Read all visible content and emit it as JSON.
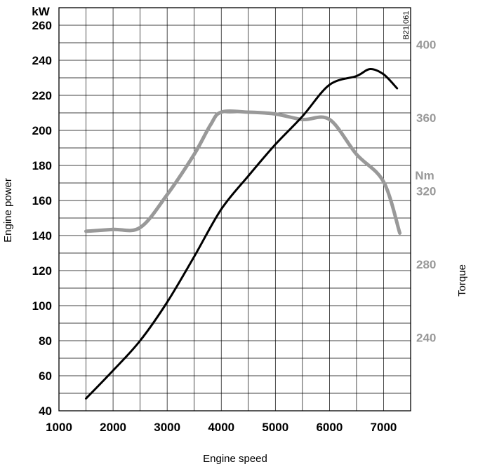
{
  "chart_data": {
    "type": "line",
    "title": "",
    "xlabel": "Engine speed",
    "ylabel_left": "Engine power",
    "ylabel_right": "Torque",
    "unit_left": "kW",
    "unit_right": "Nm",
    "figure_code": "B21 061",
    "xlim": [
      1000,
      7500
    ],
    "ylim_left": [
      40,
      270
    ],
    "ylim_right": [
      200,
      420
    ],
    "x_ticks": [
      "1000",
      "2000",
      "3000",
      "4000",
      "5000",
      "6000",
      "7000"
    ],
    "y_ticks_left": [
      "40",
      "60",
      "80",
      "100",
      "120",
      "140",
      "160",
      "180",
      "200",
      "220",
      "240",
      "260"
    ],
    "y_ticks_right": [
      "240",
      "280",
      "320",
      "360",
      "400"
    ],
    "grid": true,
    "series": [
      {
        "name": "Engine power",
        "axis": "left",
        "color": "#000000",
        "points": [
          [
            1500,
            47
          ],
          [
            2000,
            63
          ],
          [
            2500,
            80
          ],
          [
            3000,
            102
          ],
          [
            3500,
            128
          ],
          [
            4000,
            155
          ],
          [
            4500,
            174
          ],
          [
            5000,
            192
          ],
          [
            5500,
            208
          ],
          [
            6000,
            226
          ],
          [
            6500,
            231
          ],
          [
            6750,
            235
          ],
          [
            7000,
            232
          ],
          [
            7250,
            224
          ]
        ]
      },
      {
        "name": "Torque",
        "axis": "right",
        "color": "#999999",
        "points": [
          [
            1500,
            298
          ],
          [
            2000,
            299
          ],
          [
            2500,
            300
          ],
          [
            3000,
            318
          ],
          [
            3500,
            340
          ],
          [
            3800,
            356
          ],
          [
            4000,
            363
          ],
          [
            4500,
            363
          ],
          [
            5000,
            362
          ],
          [
            5500,
            359
          ],
          [
            6000,
            359
          ],
          [
            6500,
            340
          ],
          [
            7000,
            325
          ],
          [
            7300,
            297
          ]
        ]
      }
    ]
  }
}
